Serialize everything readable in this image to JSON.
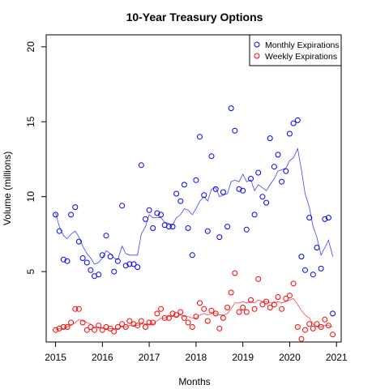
{
  "chart_data": {
    "type": "scatter",
    "title": "10-Year Treasury Options",
    "xlabel": "Months",
    "ylabel": "Volume (millions)",
    "xlim": [
      2014.8,
      2021.1
    ],
    "ylim": [
      0.3,
      20.8
    ],
    "x_ticks": [
      2015,
      2016,
      2017,
      2018,
      2019,
      2020,
      2021
    ],
    "y_ticks": [
      5,
      10,
      15,
      20
    ],
    "grid": false,
    "legend_position": "top-right",
    "series": [
      {
        "name": "Monthly Expirations",
        "color": "#0000ff",
        "points": [
          [
            2015.0,
            8.8
          ],
          [
            2015.08,
            7.7
          ],
          [
            2015.17,
            5.8
          ],
          [
            2015.25,
            5.7
          ],
          [
            2015.33,
            8.8
          ],
          [
            2015.42,
            9.3
          ],
          [
            2015.5,
            7.0
          ],
          [
            2015.58,
            5.9
          ],
          [
            2015.67,
            5.6
          ],
          [
            2015.75,
            5.1
          ],
          [
            2015.83,
            4.7
          ],
          [
            2015.92,
            4.8
          ],
          [
            2016.0,
            6.1
          ],
          [
            2016.08,
            7.4
          ],
          [
            2016.17,
            6.0
          ],
          [
            2016.25,
            5.0
          ],
          [
            2016.33,
            5.7
          ],
          [
            2016.42,
            9.4
          ],
          [
            2016.5,
            5.4
          ],
          [
            2016.58,
            5.5
          ],
          [
            2016.67,
            5.5
          ],
          [
            2016.75,
            5.3
          ],
          [
            2016.83,
            12.1
          ],
          [
            2016.92,
            8.5
          ],
          [
            2017.0,
            9.1
          ],
          [
            2017.08,
            7.9
          ],
          [
            2017.17,
            8.9
          ],
          [
            2017.25,
            8.8
          ],
          [
            2017.33,
            8.1
          ],
          [
            2017.42,
            8.0
          ],
          [
            2017.5,
            8.0
          ],
          [
            2017.58,
            10.2
          ],
          [
            2017.67,
            9.7
          ],
          [
            2017.75,
            10.8
          ],
          [
            2017.83,
            7.9
          ],
          [
            2017.92,
            6.1
          ],
          [
            2018.0,
            11.1
          ],
          [
            2018.08,
            14.0
          ],
          [
            2018.17,
            10.1
          ],
          [
            2018.25,
            7.7
          ],
          [
            2018.33,
            12.7
          ],
          [
            2018.42,
            10.5
          ],
          [
            2018.5,
            7.3
          ],
          [
            2018.58,
            10.3
          ],
          [
            2018.67,
            8.0
          ],
          [
            2018.75,
            15.9
          ],
          [
            2018.83,
            14.4
          ],
          [
            2018.92,
            10.5
          ],
          [
            2019.0,
            10.4
          ],
          [
            2019.08,
            7.8
          ],
          [
            2019.17,
            11.2
          ],
          [
            2019.25,
            8.8
          ],
          [
            2019.33,
            11.6
          ],
          [
            2019.42,
            10.0
          ],
          [
            2019.5,
            9.6
          ],
          [
            2019.58,
            13.9
          ],
          [
            2019.67,
            12.0
          ],
          [
            2019.75,
            12.8
          ],
          [
            2019.83,
            11.0
          ],
          [
            2019.92,
            11.7
          ],
          [
            2020.0,
            14.2
          ],
          [
            2020.08,
            14.9
          ],
          [
            2020.17,
            15.1
          ],
          [
            2020.25,
            6.0
          ],
          [
            2020.33,
            5.1
          ],
          [
            2020.42,
            8.6
          ],
          [
            2020.5,
            4.8
          ],
          [
            2020.58,
            6.6
          ],
          [
            2020.67,
            5.2
          ],
          [
            2020.75,
            8.5
          ],
          [
            2020.83,
            8.6
          ],
          [
            2020.92,
            2.2
          ]
        ],
        "trend": [
          [
            2015.0,
            8.9
          ],
          [
            2015.08,
            8.0
          ],
          [
            2015.17,
            7.4
          ],
          [
            2015.25,
            7.2
          ],
          [
            2015.33,
            7.5
          ],
          [
            2015.42,
            7.7
          ],
          [
            2015.5,
            7.3
          ],
          [
            2015.58,
            6.7
          ],
          [
            2015.67,
            6.2
          ],
          [
            2015.75,
            5.9
          ],
          [
            2015.83,
            5.5
          ],
          [
            2015.92,
            5.6
          ],
          [
            2016.0,
            5.9
          ],
          [
            2016.08,
            6.4
          ],
          [
            2016.17,
            6.2
          ],
          [
            2016.25,
            5.9
          ],
          [
            2016.33,
            5.8
          ],
          [
            2016.42,
            6.7
          ],
          [
            2016.5,
            6.2
          ],
          [
            2016.58,
            6.1
          ],
          [
            2016.67,
            6.1
          ],
          [
            2016.75,
            6.1
          ],
          [
            2016.83,
            7.5
          ],
          [
            2016.92,
            8.0
          ],
          [
            2017.0,
            8.8
          ],
          [
            2017.08,
            8.6
          ],
          [
            2017.17,
            8.6
          ],
          [
            2017.25,
            8.6
          ],
          [
            2017.33,
            8.3
          ],
          [
            2017.42,
            8.2
          ],
          [
            2017.5,
            8.1
          ],
          [
            2017.58,
            8.6
          ],
          [
            2017.67,
            8.8
          ],
          [
            2017.75,
            9.2
          ],
          [
            2017.83,
            9.1
          ],
          [
            2017.92,
            8.8
          ],
          [
            2018.0,
            9.2
          ],
          [
            2018.08,
            9.7
          ],
          [
            2018.17,
            10.0
          ],
          [
            2018.25,
            9.7
          ],
          [
            2018.33,
            10.5
          ],
          [
            2018.42,
            10.6
          ],
          [
            2018.5,
            10.0
          ],
          [
            2018.58,
            10.1
          ],
          [
            2018.67,
            10.2
          ],
          [
            2018.75,
            11.0
          ],
          [
            2018.83,
            11.1
          ],
          [
            2018.92,
            11.0
          ],
          [
            2019.0,
            11.5
          ],
          [
            2019.08,
            11.0
          ],
          [
            2019.17,
            11.1
          ],
          [
            2019.25,
            10.4
          ],
          [
            2019.33,
            10.8
          ],
          [
            2019.42,
            10.6
          ],
          [
            2019.5,
            10.4
          ],
          [
            2019.58,
            10.8
          ],
          [
            2019.67,
            11.2
          ],
          [
            2019.75,
            11.7
          ],
          [
            2019.83,
            11.8
          ],
          [
            2019.92,
            11.9
          ],
          [
            2020.0,
            12.4
          ],
          [
            2020.08,
            12.6
          ],
          [
            2020.17,
            13.2
          ],
          [
            2020.25,
            11.8
          ],
          [
            2020.33,
            10.2
          ],
          [
            2020.42,
            9.3
          ],
          [
            2020.5,
            8.0
          ],
          [
            2020.58,
            7.3
          ],
          [
            2020.67,
            6.1
          ],
          [
            2020.75,
            6.6
          ],
          [
            2020.83,
            7.1
          ],
          [
            2020.92,
            6.0
          ]
        ]
      },
      {
        "name": "Weekly Expirations",
        "color": "#ff0000",
        "points": [
          [
            2015.0,
            1.1
          ],
          [
            2015.08,
            1.2
          ],
          [
            2015.17,
            1.3
          ],
          [
            2015.25,
            1.3
          ],
          [
            2015.33,
            1.6
          ],
          [
            2015.42,
            2.5
          ],
          [
            2015.5,
            2.5
          ],
          [
            2015.58,
            1.6
          ],
          [
            2015.67,
            1.1
          ],
          [
            2015.75,
            1.3
          ],
          [
            2015.83,
            1.1
          ],
          [
            2015.92,
            1.4
          ],
          [
            2016.0,
            1.1
          ],
          [
            2016.08,
            1.3
          ],
          [
            2016.17,
            1.2
          ],
          [
            2016.25,
            1.0
          ],
          [
            2016.33,
            1.3
          ],
          [
            2016.42,
            1.5
          ],
          [
            2016.5,
            1.3
          ],
          [
            2016.58,
            1.7
          ],
          [
            2016.67,
            1.5
          ],
          [
            2016.75,
            1.4
          ],
          [
            2016.83,
            1.7
          ],
          [
            2016.92,
            1.3
          ],
          [
            2017.0,
            1.6
          ],
          [
            2017.08,
            1.6
          ],
          [
            2017.17,
            2.2
          ],
          [
            2017.25,
            2.5
          ],
          [
            2017.33,
            1.9
          ],
          [
            2017.42,
            1.9
          ],
          [
            2017.5,
            2.2
          ],
          [
            2017.58,
            2.1
          ],
          [
            2017.67,
            2.3
          ],
          [
            2017.75,
            1.9
          ],
          [
            2017.83,
            1.6
          ],
          [
            2017.92,
            1.3
          ],
          [
            2018.0,
            2.0
          ],
          [
            2018.08,
            2.9
          ],
          [
            2018.17,
            2.5
          ],
          [
            2018.25,
            1.7
          ],
          [
            2018.33,
            2.4
          ],
          [
            2018.42,
            2.2
          ],
          [
            2018.5,
            1.2
          ],
          [
            2018.58,
            1.9
          ],
          [
            2018.67,
            2.6
          ],
          [
            2018.75,
            3.6
          ],
          [
            2018.83,
            4.9
          ],
          [
            2018.92,
            2.3
          ],
          [
            2019.0,
            2.6
          ],
          [
            2019.08,
            2.3
          ],
          [
            2019.17,
            3.1
          ],
          [
            2019.25,
            2.5
          ],
          [
            2019.33,
            4.5
          ],
          [
            2019.42,
            2.8
          ],
          [
            2019.5,
            3.0
          ],
          [
            2019.58,
            2.6
          ],
          [
            2019.67,
            2.8
          ],
          [
            2019.75,
            3.3
          ],
          [
            2019.83,
            2.5
          ],
          [
            2019.92,
            3.2
          ],
          [
            2020.0,
            3.4
          ],
          [
            2020.08,
            4.2
          ],
          [
            2020.17,
            1.3
          ],
          [
            2020.25,
            0.5
          ],
          [
            2020.33,
            1.1
          ],
          [
            2020.42,
            1.5
          ],
          [
            2020.5,
            1.2
          ],
          [
            2020.58,
            1.5
          ],
          [
            2020.67,
            1.3
          ],
          [
            2020.75,
            1.8
          ],
          [
            2020.83,
            1.4
          ],
          [
            2020.92,
            0.8
          ]
        ],
        "trend": [
          [
            2015.0,
            1.1
          ],
          [
            2015.08,
            1.2
          ],
          [
            2015.17,
            1.2
          ],
          [
            2015.25,
            1.3
          ],
          [
            2015.33,
            1.4
          ],
          [
            2015.42,
            1.6
          ],
          [
            2015.5,
            1.8
          ],
          [
            2015.58,
            1.7
          ],
          [
            2015.67,
            1.6
          ],
          [
            2015.75,
            1.5
          ],
          [
            2015.83,
            1.3
          ],
          [
            2015.92,
            1.3
          ],
          [
            2016.0,
            1.2
          ],
          [
            2016.08,
            1.2
          ],
          [
            2016.17,
            1.2
          ],
          [
            2016.25,
            1.2
          ],
          [
            2016.33,
            1.2
          ],
          [
            2016.42,
            1.3
          ],
          [
            2016.5,
            1.3
          ],
          [
            2016.58,
            1.4
          ],
          [
            2016.67,
            1.4
          ],
          [
            2016.75,
            1.4
          ],
          [
            2016.83,
            1.5
          ],
          [
            2016.92,
            1.5
          ],
          [
            2017.0,
            1.5
          ],
          [
            2017.08,
            1.5
          ],
          [
            2017.17,
            1.7
          ],
          [
            2017.25,
            1.9
          ],
          [
            2017.33,
            1.9
          ],
          [
            2017.42,
            2.0
          ],
          [
            2017.5,
            2.0
          ],
          [
            2017.58,
            2.0
          ],
          [
            2017.67,
            2.1
          ],
          [
            2017.75,
            2.0
          ],
          [
            2017.83,
            2.0
          ],
          [
            2017.92,
            1.9
          ],
          [
            2018.0,
            1.9
          ],
          [
            2018.08,
            2.1
          ],
          [
            2018.17,
            2.2
          ],
          [
            2018.25,
            2.1
          ],
          [
            2018.33,
            2.2
          ],
          [
            2018.42,
            2.2
          ],
          [
            2018.5,
            2.1
          ],
          [
            2018.58,
            2.1
          ],
          [
            2018.67,
            2.2
          ],
          [
            2018.75,
            2.5
          ],
          [
            2018.83,
            2.9
          ],
          [
            2018.92,
            2.9
          ],
          [
            2019.0,
            3.0
          ],
          [
            2019.08,
            2.9
          ],
          [
            2019.17,
            3.0
          ],
          [
            2019.25,
            2.9
          ],
          [
            2019.33,
            3.1
          ],
          [
            2019.42,
            3.0
          ],
          [
            2019.5,
            3.0
          ],
          [
            2019.58,
            2.9
          ],
          [
            2019.67,
            2.9
          ],
          [
            2019.75,
            3.0
          ],
          [
            2019.83,
            2.9
          ],
          [
            2019.92,
            3.0
          ],
          [
            2020.0,
            3.1
          ],
          [
            2020.08,
            3.2
          ],
          [
            2020.17,
            2.8
          ],
          [
            2020.25,
            2.4
          ],
          [
            2020.33,
            2.1
          ],
          [
            2020.42,
            1.9
          ],
          [
            2020.5,
            1.5
          ],
          [
            2020.58,
            1.3
          ],
          [
            2020.67,
            1.3
          ],
          [
            2020.75,
            1.4
          ],
          [
            2020.83,
            1.4
          ],
          [
            2020.92,
            1.3
          ]
        ]
      }
    ]
  }
}
